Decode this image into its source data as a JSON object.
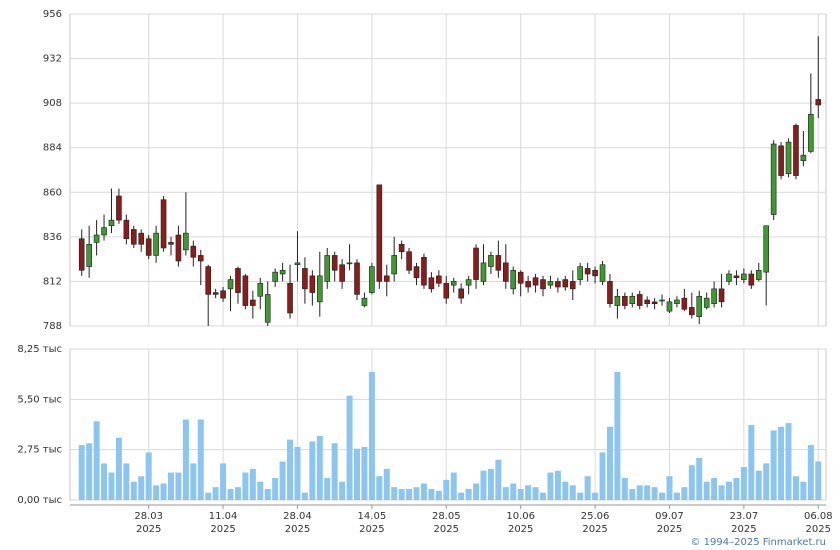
{
  "chart_data": [
    {
      "type": "candlestick",
      "categories": [
        null,
        null,
        null,
        null,
        null,
        null,
        null,
        null,
        null,
        "28.03 2025",
        null,
        null,
        null,
        null,
        null,
        null,
        null,
        null,
        null,
        "11.04 2025",
        null,
        null,
        null,
        null,
        null,
        null,
        null,
        null,
        null,
        "28.04 2025",
        null,
        null,
        null,
        null,
        null,
        null,
        null,
        null,
        null,
        "14.05 2025",
        null,
        null,
        null,
        null,
        null,
        null,
        null,
        null,
        null,
        "28.05 2025",
        null,
        null,
        null,
        null,
        null,
        null,
        null,
        null,
        null,
        "10.06 2025",
        null,
        null,
        null,
        null,
        null,
        null,
        null,
        null,
        null,
        "25.06 2025",
        null,
        null,
        null,
        null,
        null,
        null,
        null,
        null,
        null,
        "09.07 2025",
        null,
        null,
        null,
        null,
        null,
        null,
        null,
        null,
        null,
        "23.07 2025",
        null,
        null,
        null,
        null,
        null,
        null,
        null,
        null,
        null,
        "06.08 2025"
      ],
      "open": [
        835,
        820,
        833,
        837,
        842,
        858,
        845,
        840,
        838,
        835,
        826,
        856,
        833,
        837,
        829,
        831,
        826,
        820,
        806,
        807,
        808,
        819,
        815,
        802,
        804,
        790,
        812,
        816,
        811,
        821,
        819,
        815,
        801,
        812,
        826,
        821,
        822,
        822,
        799,
        806,
        864,
        815,
        816,
        832,
        828,
        820,
        825,
        814,
        815,
        811,
        810,
        808,
        810,
        830,
        812,
        820,
        826,
        822,
        808,
        817,
        812,
        814,
        813,
        810,
        812,
        813,
        812,
        813,
        819,
        818,
        812,
        812,
        799,
        804,
        800,
        805,
        802,
        801,
        802,
        796,
        800,
        803,
        798,
        793,
        798,
        800,
        808,
        812,
        815,
        813,
        816,
        813,
        817,
        848,
        885,
        870,
        896,
        877,
        882,
        910
      ],
      "high": [
        840,
        842,
        845,
        848,
        862,
        862,
        848,
        842,
        840,
        837,
        842,
        858,
        836,
        842,
        860,
        834,
        829,
        821,
        808,
        809,
        815,
        820,
        816,
        807,
        814,
        812,
        819,
        822,
        821,
        839,
        825,
        818,
        828,
        830,
        828,
        824,
        832,
        824,
        806,
        822,
        864,
        821,
        836,
        834,
        830,
        822,
        827,
        817,
        818,
        815,
        814,
        811,
        815,
        832,
        832,
        828,
        834,
        832,
        820,
        818,
        815,
        816,
        815,
        815,
        814,
        815,
        818,
        822,
        822,
        820,
        823,
        816,
        808,
        806,
        806,
        807,
        804,
        803,
        805,
        803,
        804,
        808,
        806,
        807,
        806,
        812,
        816,
        818,
        818,
        819,
        818,
        822,
        842,
        888,
        887,
        889,
        897,
        893,
        924,
        944
      ],
      "low": [
        815,
        814,
        826,
        834,
        838,
        843,
        832,
        830,
        828,
        824,
        822,
        828,
        826,
        820,
        826,
        820,
        810,
        788,
        803,
        801,
        796,
        800,
        797,
        792,
        797,
        788,
        809,
        812,
        792,
        812,
        800,
        799,
        793,
        808,
        812,
        808,
        818,
        802,
        798,
        805,
        808,
        804,
        812,
        824,
        816,
        810,
        808,
        806,
        809,
        800,
        806,
        800,
        805,
        808,
        810,
        816,
        814,
        808,
        805,
        804,
        806,
        806,
        804,
        808,
        806,
        807,
        802,
        810,
        812,
        811,
        810,
        798,
        792,
        797,
        798,
        797,
        798,
        797,
        799,
        795,
        798,
        796,
        792,
        789,
        797,
        798,
        798,
        810,
        810,
        811,
        808,
        812,
        799,
        845,
        867,
        868,
        867,
        874,
        881,
        900
      ],
      "close": [
        818,
        832,
        837,
        841,
        845,
        845,
        835,
        832,
        832,
        826,
        838,
        830,
        832,
        823,
        838,
        825,
        823,
        805,
        805,
        803,
        813,
        806,
        799,
        799,
        811,
        805,
        817,
        818,
        795,
        822,
        808,
        806,
        815,
        826,
        818,
        812,
        822,
        805,
        803,
        820,
        812,
        812,
        826,
        828,
        818,
        814,
        810,
        808,
        811,
        803,
        812,
        803,
        813,
        813,
        822,
        826,
        818,
        812,
        818,
        811,
        809,
        810,
        808,
        812,
        809,
        809,
        808,
        820,
        816,
        815,
        821,
        800,
        804,
        799,
        804,
        799,
        800,
        800,
        802,
        801,
        802,
        797,
        794,
        804,
        803,
        808,
        801,
        816,
        814,
        816,
        810,
        818,
        842,
        886,
        869,
        887,
        869,
        880,
        902,
        907
      ],
      "up_color": "#3c9a2e",
      "down_color": "#8b1c1c",
      "ylim": [
        788,
        956
      ],
      "yticks": [
        788,
        812,
        836,
        860,
        884,
        908,
        932,
        956
      ],
      "grid": true
    },
    {
      "type": "bar",
      "values": [
        3.0,
        3.1,
        4.3,
        2.0,
        1.5,
        3.4,
        2.0,
        1.0,
        1.3,
        2.6,
        0.8,
        0.9,
        1.5,
        1.5,
        4.4,
        2.0,
        4.4,
        0.4,
        0.7,
        2.0,
        0.6,
        0.7,
        1.5,
        1.7,
        1.0,
        0.6,
        1.2,
        2.1,
        3.3,
        2.9,
        0.4,
        3.2,
        3.5,
        1.2,
        3.1,
        1.0,
        5.7,
        2.8,
        2.9,
        7.0,
        1.3,
        1.7,
        0.7,
        0.6,
        0.6,
        0.7,
        0.9,
        0.6,
        0.5,
        1.1,
        1.5,
        0.4,
        0.6,
        0.9,
        1.6,
        1.7,
        2.2,
        0.7,
        0.9,
        0.6,
        0.8,
        0.7,
        0.4,
        1.5,
        1.6,
        1.0,
        0.8,
        0.4,
        1.3,
        0.4,
        2.6,
        4.0,
        7.0,
        1.2,
        0.6,
        0.8,
        0.8,
        0.7,
        0.4,
        1.3,
        0.4,
        0.7,
        1.9,
        2.3,
        1.0,
        1.2,
        0.8,
        1.0,
        1.2,
        1.8,
        4.1,
        1.6,
        2.0,
        3.8,
        4.0,
        4.2,
        1.3,
        1.0,
        3.0,
        2.1
      ],
      "color": "#8cc6f0",
      "ylim": [
        0,
        8.25
      ],
      "yticks": [
        {
          "value": 0,
          "label": "0,00 тыс"
        },
        {
          "value": 2.75,
          "label": "2,75 тыс"
        },
        {
          "value": 5.5,
          "label": "5,50 тыс"
        },
        {
          "value": 8.25,
          "label": "8,25 тыс"
        }
      ],
      "grid": true
    }
  ],
  "credit": "© 1994–2025 Finmarket.ru"
}
